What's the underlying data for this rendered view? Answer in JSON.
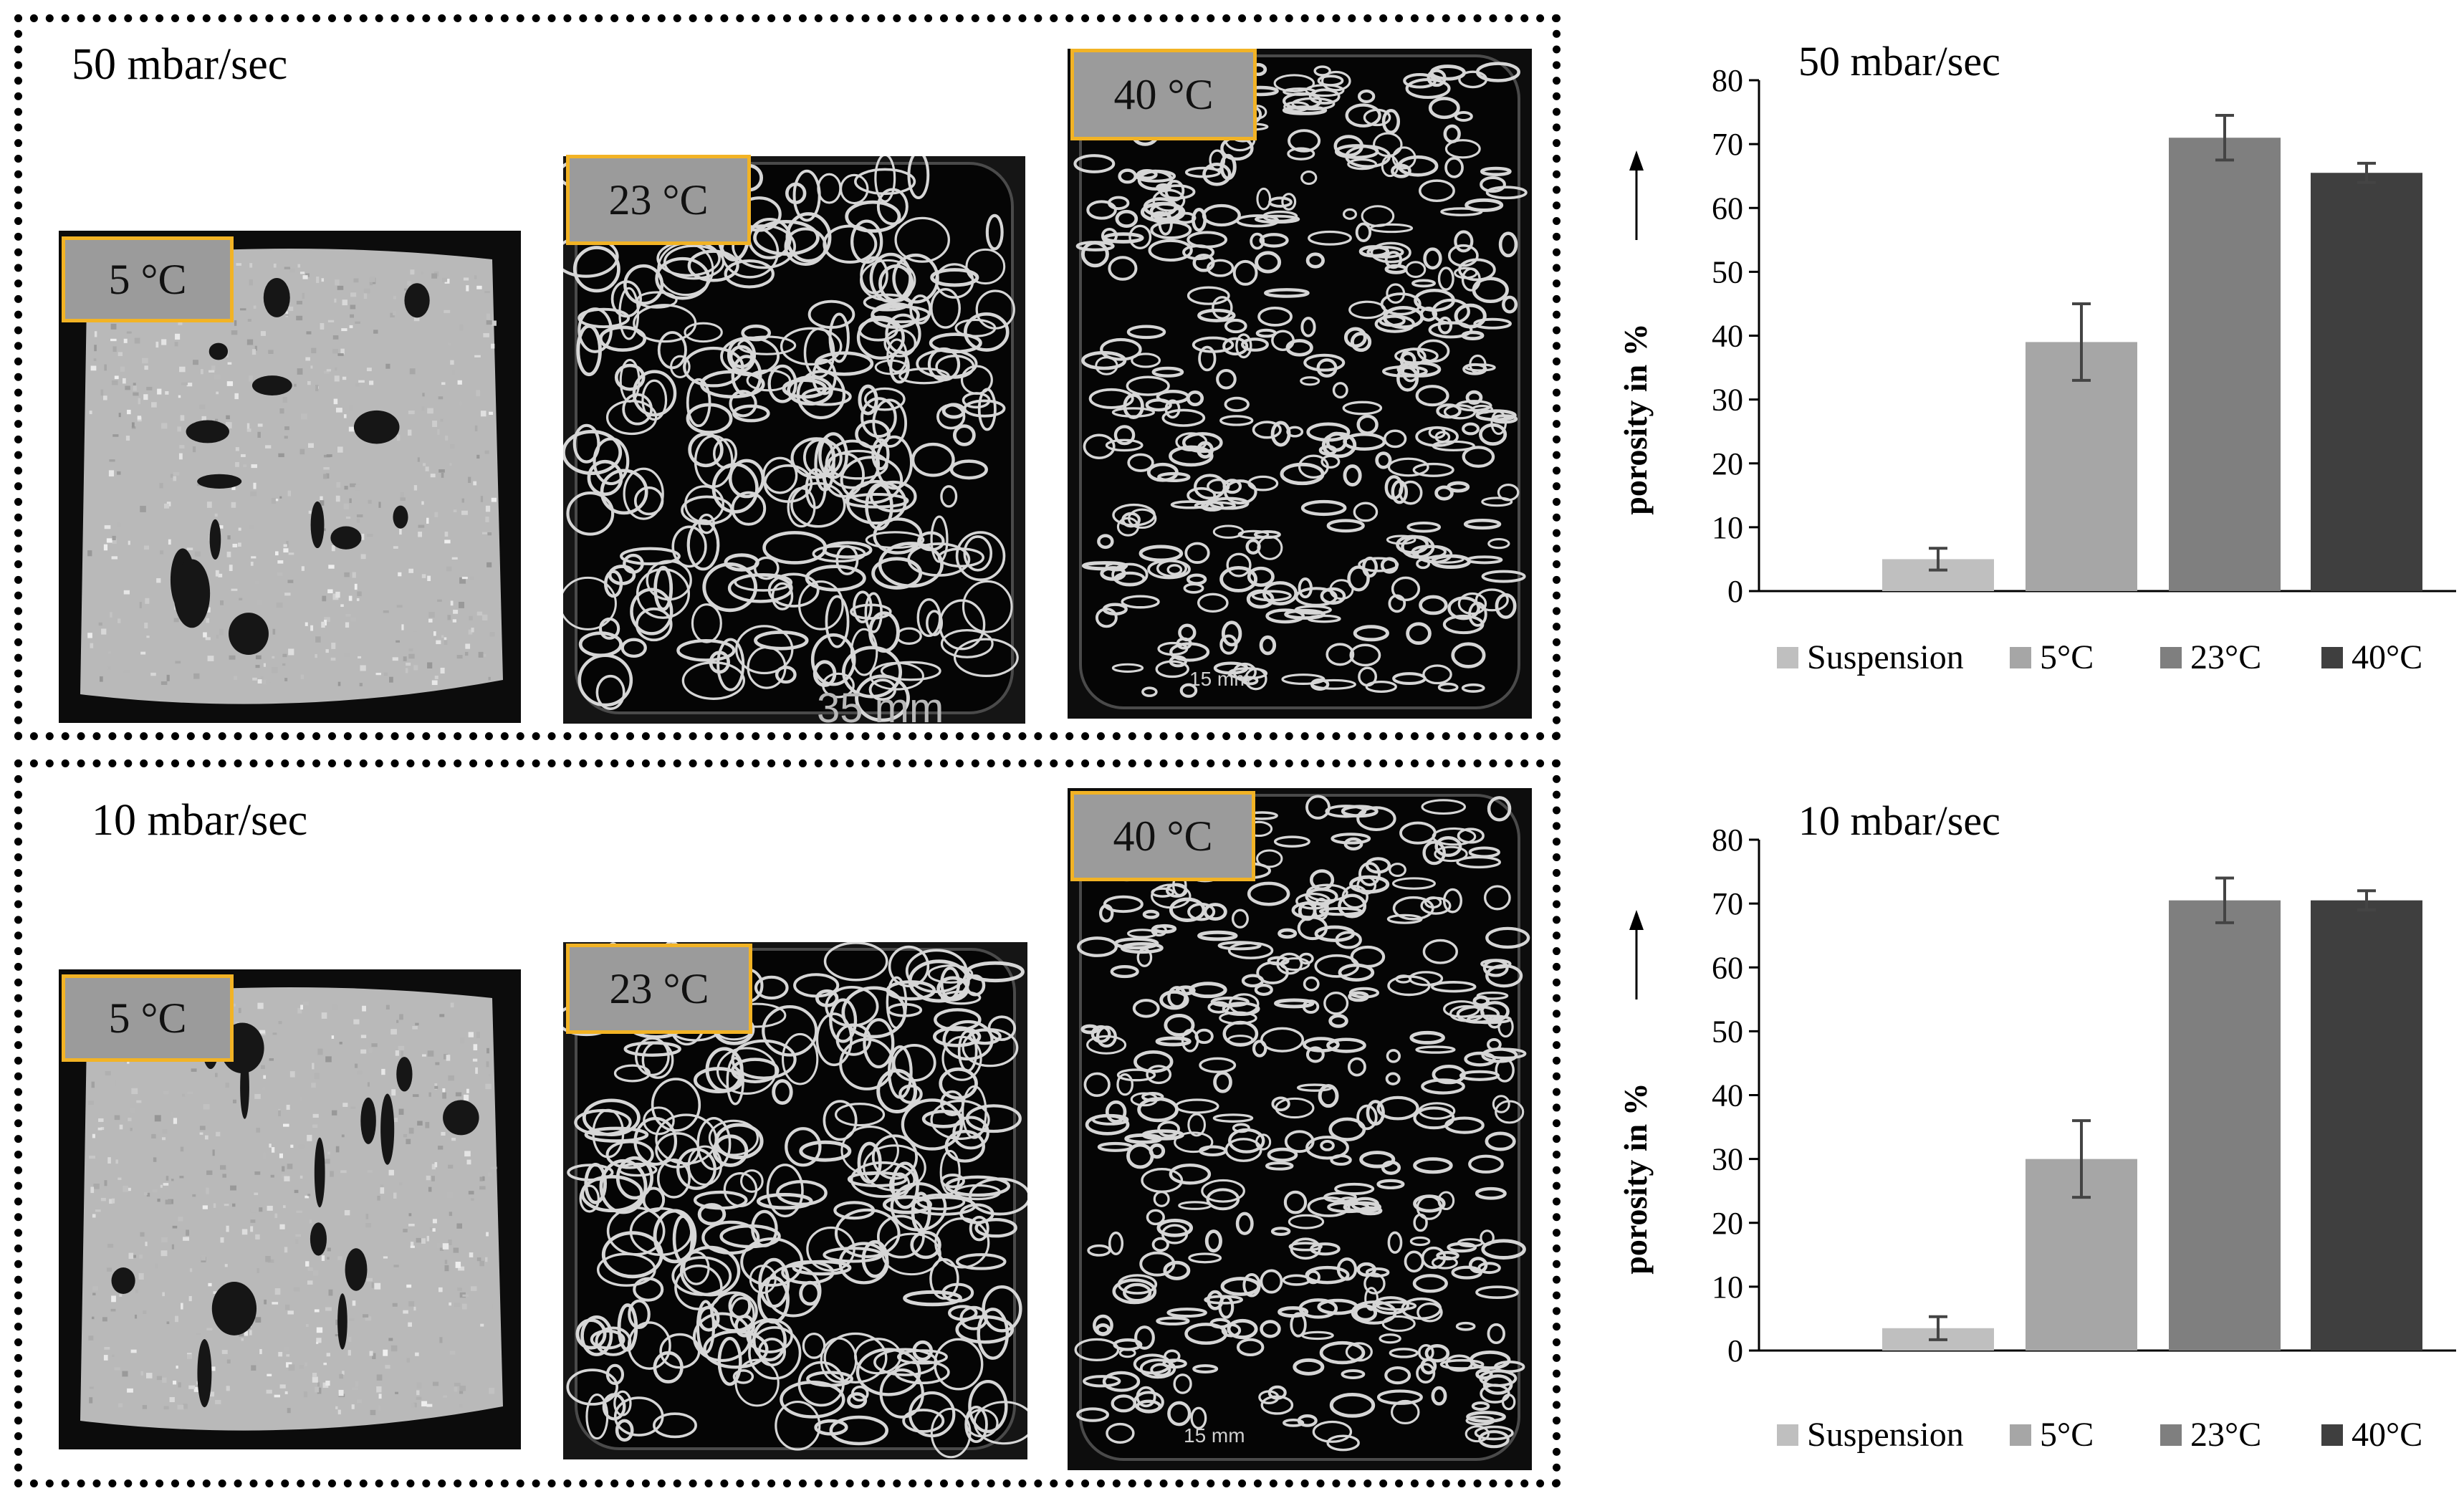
{
  "panels": [
    {
      "title": "50 mbar/sec",
      "images": [
        {
          "label": "5 °C",
          "scale": ""
        },
        {
          "label": "23 °C",
          "scale": "35 mm"
        },
        {
          "label": "40 °C",
          "scale": "15 mm"
        }
      ]
    },
    {
      "title": "10 mbar/sec",
      "images": [
        {
          "label": "5 °C",
          "scale": ""
        },
        {
          "label": "23 °C",
          "scale": ""
        },
        {
          "label": "40 °C",
          "scale": "15 mm"
        }
      ]
    }
  ],
  "colors": {
    "label_border": "#f2b325",
    "label_fill": "#9b9b9b"
  },
  "chart_data": [
    {
      "type": "bar",
      "title": "50 mbar/sec",
      "ylabel": "porosity in %",
      "ylim": [
        0,
        80
      ],
      "yticks": [
        0,
        10,
        20,
        30,
        40,
        50,
        60,
        70,
        80
      ],
      "categories": [
        "Suspension",
        "5°C",
        "23°C",
        "40°C"
      ],
      "values": [
        5,
        39,
        71,
        65.5
      ],
      "errors": [
        1.7,
        6,
        3.5,
        1.5
      ],
      "colors": [
        "#bfbfbf",
        "#a6a6a6",
        "#7f7f7f",
        "#3f3f3f"
      ],
      "legend": "bottom"
    },
    {
      "type": "bar",
      "title": "10 mbar/sec",
      "ylabel": "porosity in %",
      "ylim": [
        0,
        80
      ],
      "yticks": [
        0,
        10,
        20,
        30,
        40,
        50,
        60,
        70,
        80
      ],
      "categories": [
        "Suspension",
        "5°C",
        "23°C",
        "40°C"
      ],
      "values": [
        3.5,
        30,
        70.5,
        70.5
      ],
      "errors": [
        1.8,
        6,
        3.5,
        1.5
      ],
      "colors": [
        "#bfbfbf",
        "#a6a6a6",
        "#7f7f7f",
        "#3f3f3f"
      ],
      "legend": "bottom"
    }
  ]
}
